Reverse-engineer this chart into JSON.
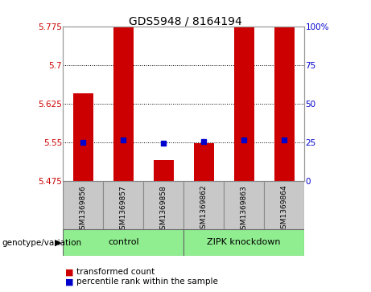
{
  "title": "GDS5948 / 8164194",
  "samples": [
    "GSM1369856",
    "GSM1369857",
    "GSM1369858",
    "GSM1369862",
    "GSM1369863",
    "GSM1369864"
  ],
  "red_values": [
    5.645,
    5.775,
    5.515,
    5.548,
    5.775,
    5.775
  ],
  "blue_values": [
    5.55,
    5.554,
    5.548,
    5.551,
    5.554,
    5.554
  ],
  "ymin": 5.475,
  "ymax": 5.775,
  "yticks": [
    5.475,
    5.55,
    5.625,
    5.7,
    5.775
  ],
  "ytick_labels": [
    "5.475",
    "5.55",
    "5.625",
    "5.7",
    "5.775"
  ],
  "right_yticks": [
    0,
    25,
    50,
    75,
    100
  ],
  "right_ytick_labels": [
    "0",
    "25",
    "50",
    "75",
    "100%"
  ],
  "bar_width": 0.5,
  "bar_color": "#CC0000",
  "dot_color": "#0000CC",
  "dot_size": 25,
  "grid_color": "#000000",
  "bg_plot": "#ffffff",
  "bg_label_area": "#C8C8C8",
  "legend_red_label": "transformed count",
  "legend_blue_label": "percentile rank within the sample",
  "group_row_label": "genotype/variation",
  "right_axis_color": "#0000CC",
  "left_axis_color": "#CC0000",
  "control_color": "#90EE90",
  "zipk_color": "#90EE90"
}
